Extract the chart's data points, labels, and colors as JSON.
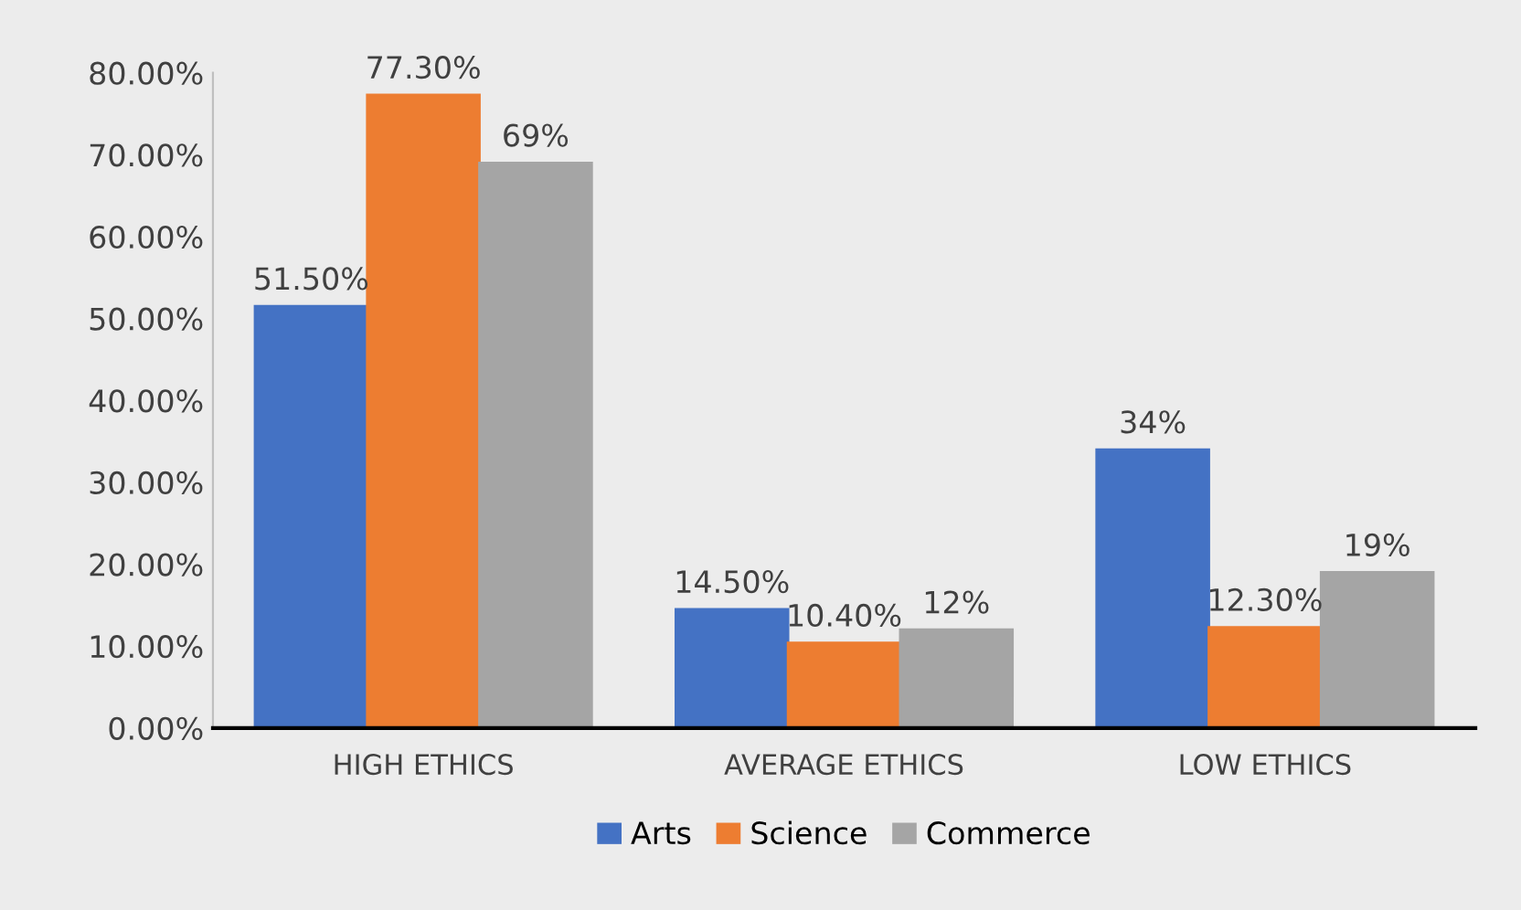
{
  "chart_data": {
    "type": "bar",
    "categories": [
      "HIGH ETHICS",
      "AVERAGE ETHICS",
      "LOW ETHICS"
    ],
    "series": [
      {
        "name": "Arts",
        "color": "#4472c4",
        "values": [
          51.5,
          14.5,
          34
        ],
        "value_labels": [
          "51.50%",
          "14.50%",
          "34%"
        ]
      },
      {
        "name": "Science",
        "color": "#ed7d31",
        "values": [
          77.3,
          10.4,
          12.3
        ],
        "value_labels": [
          "77.30%",
          "10.40%",
          "12.30%"
        ]
      },
      {
        "name": "Commerce",
        "color": "#a5a5a5",
        "values": [
          69,
          12,
          19
        ],
        "value_labels": [
          "69%",
          "12%",
          "19%"
        ]
      }
    ],
    "ylim": [
      0,
      80
    ],
    "yticks": [
      {
        "value": 0,
        "label": "0.00%"
      },
      {
        "value": 10,
        "label": "10.00%"
      },
      {
        "value": 20,
        "label": "20.00%"
      },
      {
        "value": 30,
        "label": "30.00%"
      },
      {
        "value": 40,
        "label": "40.00%"
      },
      {
        "value": 50,
        "label": "50.00%"
      },
      {
        "value": 60,
        "label": "60.00%"
      },
      {
        "value": 70,
        "label": "70.00%"
      },
      {
        "value": 80,
        "label": "80.00%"
      }
    ],
    "grid": false,
    "legend": "bottom"
  }
}
